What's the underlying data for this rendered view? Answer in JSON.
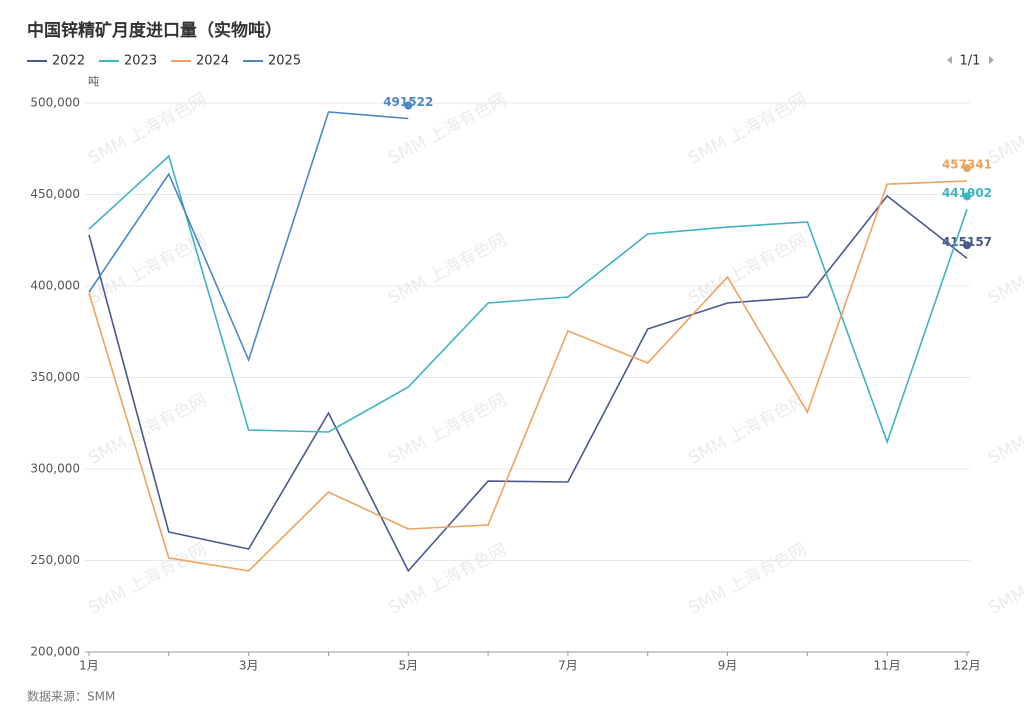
{
  "chart_data": {
    "type": "line",
    "title": "中国锌精矿月度进口量（实物吨）",
    "y_axis_label": "吨",
    "source": "数据来源：SMM",
    "watermark": "SMM 上海有色网",
    "legend_pager": "1/1",
    "categories": [
      "1月",
      null,
      "3月",
      null,
      "5月",
      null,
      "7月",
      null,
      "9月",
      null,
      "11月",
      "12月"
    ],
    "series": [
      {
        "name": "2022",
        "color": "#4a5891",
        "values": [
          428000,
          265600,
          256300,
          330600,
          244300,
          293400,
          292900,
          376500,
          390700,
          394000,
          449200,
          415157
        ]
      },
      {
        "name": "2023",
        "color": "#3fb3c4",
        "values": [
          431100,
          471000,
          321300,
          320200,
          344800,
          390700,
          394000,
          428400,
          432200,
          435000,
          314800,
          441902
        ]
      },
      {
        "name": "2024",
        "color": "#eda35f",
        "values": [
          396200,
          251400,
          244300,
          287400,
          267200,
          269400,
          375400,
          357900,
          404900,
          331100,
          455700,
          457341
        ]
      },
      {
        "name": "2025",
        "color": "#4d87c5",
        "values": [
          396700,
          461200,
          359600,
          495100,
          491522,
          null,
          null,
          null,
          null,
          null,
          null,
          null
        ]
      }
    ],
    "ylim": [
      200000,
      500000
    ],
    "yticks": [
      {
        "value": 200000,
        "label": "200,000"
      },
      {
        "value": 250000,
        "label": "250,000"
      },
      {
        "value": 300000,
        "label": "300,000"
      },
      {
        "value": 350000,
        "label": "350,000"
      },
      {
        "value": 400000,
        "label": "400,000"
      },
      {
        "value": 450000,
        "label": "450,000"
      },
      {
        "value": 500000,
        "label": "500,000"
      }
    ],
    "grid": true
  }
}
